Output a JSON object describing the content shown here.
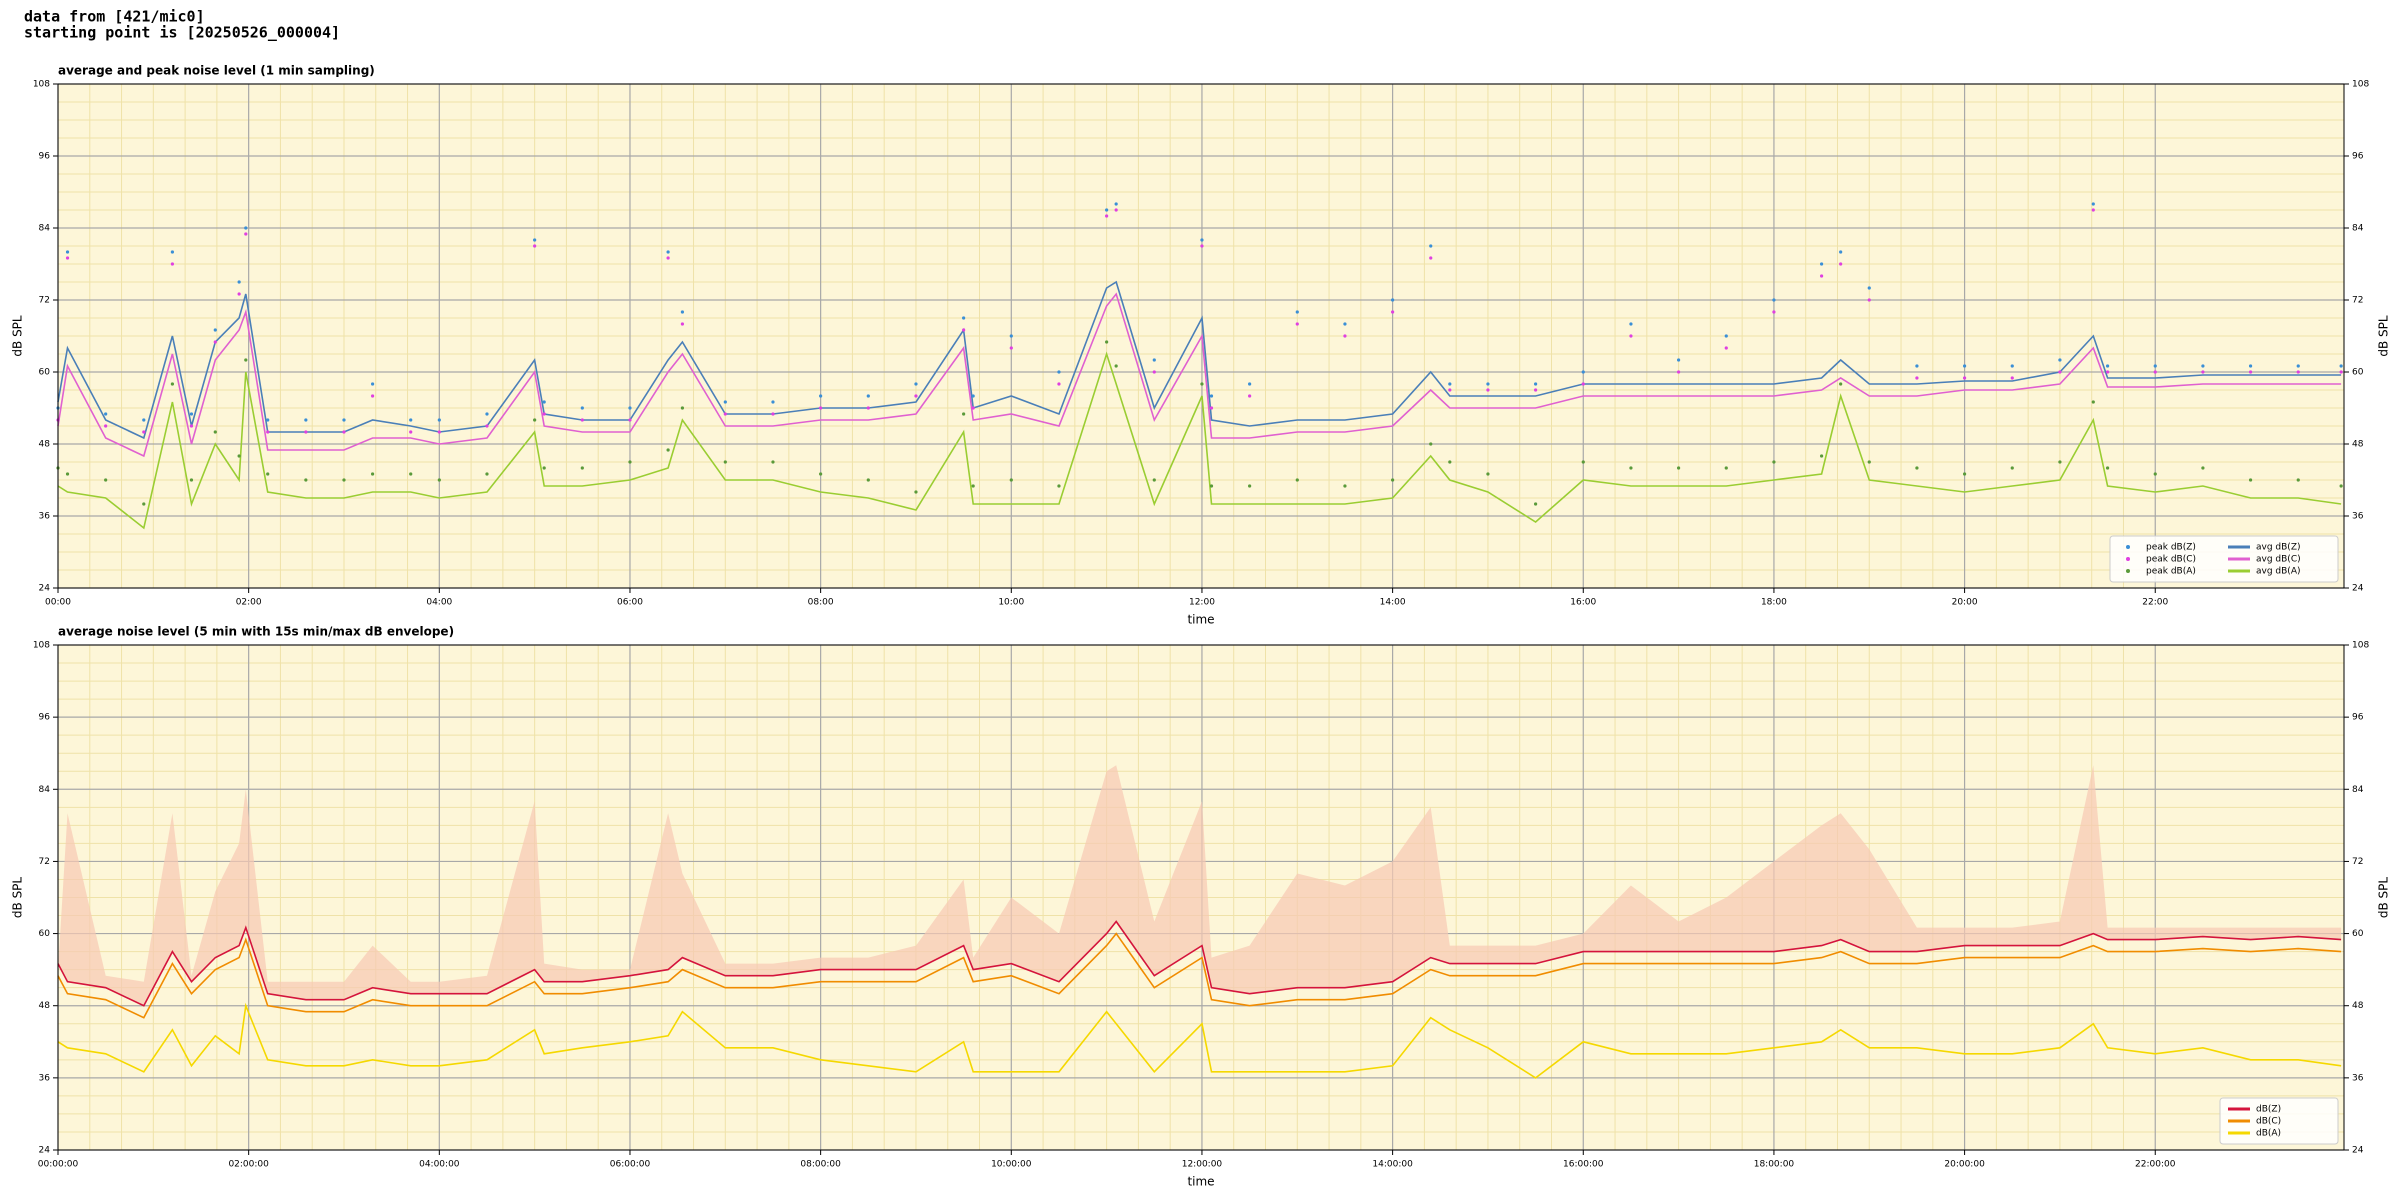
{
  "header": {
    "line1": "data from [421/mic0]",
    "line2": "starting point is [20250526_000004]"
  },
  "chart_data": [
    {
      "type": "line",
      "title": "average and peak noise level (1 min sampling)",
      "x_label": "time",
      "y_label": "dB SPL",
      "y2_label": "dB SPL",
      "background": "#fdf6d8",
      "grid": true,
      "legend": "lower right",
      "xlim": [
        0,
        23.98
      ],
      "xticks": [
        {
          "value": 0,
          "label": "00:00"
        },
        {
          "value": 2,
          "label": "02:00"
        },
        {
          "value": 4,
          "label": "04:00"
        },
        {
          "value": 6,
          "label": "06:00"
        },
        {
          "value": 8,
          "label": "08:00"
        },
        {
          "value": 10,
          "label": "10:00"
        },
        {
          "value": 12,
          "label": "12:00"
        },
        {
          "value": 14,
          "label": "14:00"
        },
        {
          "value": 16,
          "label": "16:00"
        },
        {
          "value": 18,
          "label": "18:00"
        },
        {
          "value": 20,
          "label": "20:00"
        },
        {
          "value": 22,
          "label": "22:00"
        }
      ],
      "ylim": [
        24,
        108
      ],
      "yticks": [
        24,
        36,
        48,
        60,
        72,
        84,
        96,
        108
      ],
      "x": [
        0,
        0.1,
        0.5,
        0.9,
        1.2,
        1.4,
        1.65,
        1.9,
        1.97,
        2.2,
        2.6,
        3.0,
        3.3,
        3.7,
        4.0,
        4.5,
        5.0,
        5.1,
        5.5,
        6.0,
        6.4,
        6.55,
        7.0,
        7.5,
        8.0,
        8.5,
        9.0,
        9.5,
        9.6,
        10.0,
        10.5,
        11.0,
        11.1,
        11.5,
        12.0,
        12.1,
        12.5,
        13.0,
        13.5,
        14.0,
        14.4,
        14.6,
        15.0,
        15.5,
        16.0,
        16.5,
        17.0,
        17.5,
        18.0,
        18.5,
        18.7,
        19.0,
        19.5,
        20.0,
        20.5,
        21.0,
        21.35,
        21.5,
        22.0,
        22.5,
        23.0,
        23.5,
        23.95
      ],
      "series": [
        {
          "name": "peak dB(Z)",
          "kind": "scatter",
          "color": "#3a8fd6",
          "values": [
            54,
            80,
            53,
            52,
            80,
            53,
            67,
            75,
            84,
            52,
            52,
            52,
            58,
            52,
            52,
            53,
            82,
            55,
            54,
            54,
            80,
            70,
            55,
            55,
            56,
            56,
            58,
            69,
            56,
            66,
            60,
            87,
            88,
            62,
            82,
            56,
            58,
            70,
            68,
            72,
            81,
            58,
            58,
            58,
            60,
            68,
            62,
            66,
            72,
            78,
            80,
            74,
            61,
            61,
            61,
            62,
            88,
            61,
            61,
            61,
            61,
            61,
            61
          ]
        },
        {
          "name": "peak dB(C)",
          "kind": "scatter",
          "color": "#e040e0",
          "values": [
            52,
            79,
            51,
            50,
            78,
            51,
            65,
            73,
            83,
            50,
            50,
            50,
            56,
            50,
            50,
            51,
            81,
            53,
            52,
            52,
            79,
            68,
            53,
            53,
            54,
            54,
            56,
            67,
            54,
            64,
            58,
            86,
            87,
            60,
            81,
            54,
            56,
            68,
            66,
            70,
            79,
            57,
            57,
            57,
            58,
            66,
            60,
            64,
            70,
            76,
            78,
            72,
            59,
            59,
            59,
            60,
            87,
            60,
            60,
            60,
            60,
            60,
            60
          ]
        },
        {
          "name": "peak dB(A)",
          "kind": "scatter",
          "color": "#5a9a3a",
          "values": [
            44,
            43,
            42,
            38,
            58,
            42,
            50,
            46,
            62,
            43,
            42,
            42,
            43,
            43,
            42,
            43,
            52,
            44,
            44,
            45,
            47,
            54,
            45,
            45,
            43,
            42,
            40,
            53,
            41,
            42,
            41,
            65,
            61,
            42,
            58,
            41,
            41,
            42,
            41,
            42,
            48,
            45,
            43,
            38,
            45,
            44,
            44,
            44,
            45,
            46,
            58,
            45,
            44,
            43,
            44,
            45,
            55,
            44,
            43,
            44,
            42,
            42,
            41
          ]
        },
        {
          "name": "avg dB(Z)",
          "kind": "line",
          "color": "#4a7fb8",
          "values": [
            55,
            64,
            52,
            49,
            66,
            51,
            65,
            69,
            73,
            50,
            50,
            50,
            52,
            51,
            50,
            51,
            62,
            53,
            52,
            52,
            62,
            65,
            53,
            53,
            54,
            54,
            55,
            67,
            54,
            56,
            53,
            74,
            75,
            54,
            69,
            52,
            51,
            52,
            52,
            53,
            60,
            56,
            56,
            56,
            58,
            58,
            58,
            58,
            58,
            59,
            62,
            58,
            58,
            58.5,
            58.5,
            60,
            66,
            59,
            59,
            59.5,
            59.5,
            59.5,
            59.5
          ]
        },
        {
          "name": "avg dB(C)",
          "kind": "line",
          "color": "#e060d0",
          "values": [
            51,
            61,
            49,
            46,
            63,
            48,
            62,
            67,
            70,
            47,
            47,
            47,
            49,
            49,
            48,
            49,
            60,
            51,
            50,
            50,
            60,
            63,
            51,
            51,
            52,
            52,
            53,
            64,
            52,
            53,
            51,
            71,
            73,
            52,
            66,
            49,
            49,
            50,
            50,
            51,
            57,
            54,
            54,
            54,
            56,
            56,
            56,
            56,
            56,
            57,
            59,
            56,
            56,
            57,
            57,
            58,
            64,
            57.5,
            57.5,
            58,
            58,
            58,
            58
          ]
        },
        {
          "name": "avg dB(A)",
          "kind": "line",
          "color": "#9acd32",
          "values": [
            41,
            40,
            39,
            34,
            55,
            38,
            48,
            42,
            60,
            40,
            39,
            39,
            40,
            40,
            39,
            40,
            50,
            41,
            41,
            42,
            44,
            52,
            42,
            42,
            40,
            39,
            37,
            50,
            38,
            38,
            38,
            63,
            58,
            38,
            56,
            38,
            38,
            38,
            38,
            39,
            46,
            42,
            40,
            35,
            42,
            41,
            41,
            41,
            42,
            43,
            56,
            42,
            41,
            40,
            41,
            42,
            52,
            41,
            40,
            41,
            39,
            39,
            38
          ]
        }
      ]
    },
    {
      "type": "line",
      "title": "average noise level (5 min with 15s min/max dB envelope)",
      "x_label": "time",
      "y_label": "dB SPL",
      "y2_label": "dB SPL",
      "background": "#fdf6d8",
      "grid": true,
      "legend": "lower right",
      "xlim": [
        0,
        23.98
      ],
      "xticks": [
        {
          "value": 0,
          "label": "00:00:00"
        },
        {
          "value": 2,
          "label": "02:00:00"
        },
        {
          "value": 4,
          "label": "04:00:00"
        },
        {
          "value": 6,
          "label": "06:00:00"
        },
        {
          "value": 8,
          "label": "08:00:00"
        },
        {
          "value": 10,
          "label": "10:00:00"
        },
        {
          "value": 12,
          "label": "12:00:00"
        },
        {
          "value": 14,
          "label": "14:00:00"
        },
        {
          "value": 16,
          "label": "16:00:00"
        },
        {
          "value": 18,
          "label": "18:00:00"
        },
        {
          "value": 20,
          "label": "20:00:00"
        },
        {
          "value": 22,
          "label": "22:00:00"
        }
      ],
      "ylim": [
        24,
        108
      ],
      "yticks": [
        24,
        36,
        48,
        60,
        72,
        84,
        96,
        108
      ],
      "x": [
        0,
        0.1,
        0.5,
        0.9,
        1.2,
        1.4,
        1.65,
        1.9,
        1.97,
        2.2,
        2.6,
        3.0,
        3.3,
        3.7,
        4.0,
        4.5,
        5.0,
        5.1,
        5.5,
        6.0,
        6.4,
        6.55,
        7.0,
        7.5,
        8.0,
        8.5,
        9.0,
        9.5,
        9.6,
        10.0,
        10.5,
        11.0,
        11.1,
        11.5,
        12.0,
        12.1,
        12.5,
        13.0,
        13.5,
        14.0,
        14.4,
        14.6,
        15.0,
        15.5,
        16.0,
        16.5,
        17.0,
        17.5,
        18.0,
        18.5,
        18.7,
        19.0,
        19.5,
        20.0,
        20.5,
        21.0,
        21.35,
        21.5,
        22.0,
        22.5,
        23.0,
        23.5,
        23.95
      ],
      "envelope": {
        "color": "#f6c9b4",
        "upper": [
          54,
          80,
          53,
          52,
          80,
          53,
          67,
          75,
          84,
          52,
          52,
          52,
          58,
          52,
          52,
          53,
          82,
          55,
          54,
          54,
          80,
          70,
          55,
          55,
          56,
          56,
          58,
          69,
          56,
          66,
          60,
          87,
          88,
          62,
          82,
          56,
          58,
          70,
          68,
          72,
          81,
          58,
          58,
          58,
          60,
          68,
          62,
          66,
          72,
          78,
          80,
          74,
          61,
          61,
          61,
          62,
          88,
          61,
          61,
          61,
          61,
          61,
          61
        ]
      },
      "series": [
        {
          "name": "dB(Z)",
          "kind": "line",
          "color": "#d4143c",
          "values": [
            55,
            52,
            51,
            48,
            57,
            52,
            56,
            58,
            61,
            50,
            49,
            49,
            51,
            50,
            50,
            50,
            54,
            52,
            52,
            53,
            54,
            56,
            53,
            53,
            54,
            54,
            54,
            58,
            54,
            55,
            52,
            60,
            62,
            53,
            58,
            51,
            50,
            51,
            51,
            52,
            56,
            55,
            55,
            55,
            57,
            57,
            57,
            57,
            57,
            58,
            59,
            57,
            57,
            58,
            58,
            58,
            60,
            59,
            59,
            59.5,
            59,
            59.5,
            59
          ]
        },
        {
          "name": "dB(C)",
          "kind": "line",
          "color": "#f08c00",
          "values": [
            53,
            50,
            49,
            46,
            55,
            50,
            54,
            56,
            59,
            48,
            47,
            47,
            49,
            48,
            48,
            48,
            52,
            50,
            50,
            51,
            52,
            54,
            51,
            51,
            52,
            52,
            52,
            56,
            52,
            53,
            50,
            58,
            60,
            51,
            56,
            49,
            48,
            49,
            49,
            50,
            54,
            53,
            53,
            53,
            55,
            55,
            55,
            55,
            55,
            56,
            57,
            55,
            55,
            56,
            56,
            56,
            58,
            57,
            57,
            57.5,
            57,
            57.5,
            57
          ]
        },
        {
          "name": "dB(A)",
          "kind": "line",
          "color": "#f5d800",
          "values": [
            42,
            41,
            40,
            37,
            44,
            38,
            43,
            40,
            48,
            39,
            38,
            38,
            39,
            38,
            38,
            39,
            44,
            40,
            41,
            42,
            43,
            47,
            41,
            41,
            39,
            38,
            37,
            42,
            37,
            37,
            37,
            47,
            45,
            37,
            45,
            37,
            37,
            37,
            37,
            38,
            46,
            44,
            41,
            36,
            42,
            40,
            40,
            40,
            41,
            42,
            44,
            41,
            41,
            40,
            40,
            41,
            45,
            41,
            40,
            41,
            39,
            39,
            38
          ]
        }
      ]
    }
  ]
}
